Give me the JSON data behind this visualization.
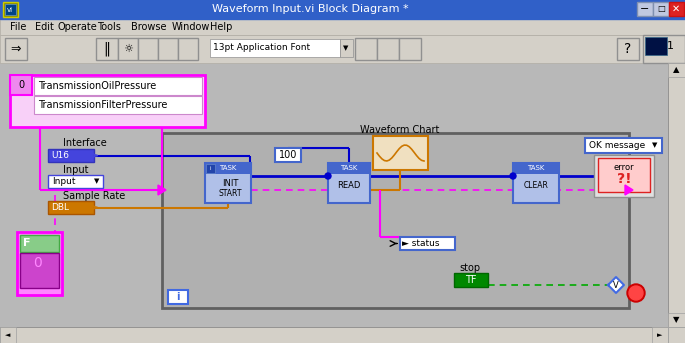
{
  "title": "Waveform Input.vi Block Diagram *",
  "title_bar_color": "#3060c8",
  "title_text_color": "#ffffff",
  "bg_color": "#d4d0c8",
  "diagram_bg": "#b8b8b8",
  "menu_items": [
    "File",
    "Edit",
    "Operate",
    "Tools",
    "Browse",
    "Window",
    "Help"
  ],
  "wire_blue": "#0000cc",
  "wire_pink": "#ff00ff",
  "wire_pink_dashed": "#ff66ff",
  "wire_orange": "#cc7700",
  "wire_green_dashed": "#00aa00",
  "channel_names": [
    "TransmissionOilPressure",
    "TransmissionFilterPressure"
  ],
  "task_blue_dark": "#3060c8",
  "task_blue_light": "#8090d0",
  "u16_color": "#4444dd",
  "dbl_color": "#cc7700",
  "tf_color": "#008800",
  "pink_border": "#ff00ff",
  "loop_border": "#606060",
  "scrollbar_bg": "#d4d0c8"
}
